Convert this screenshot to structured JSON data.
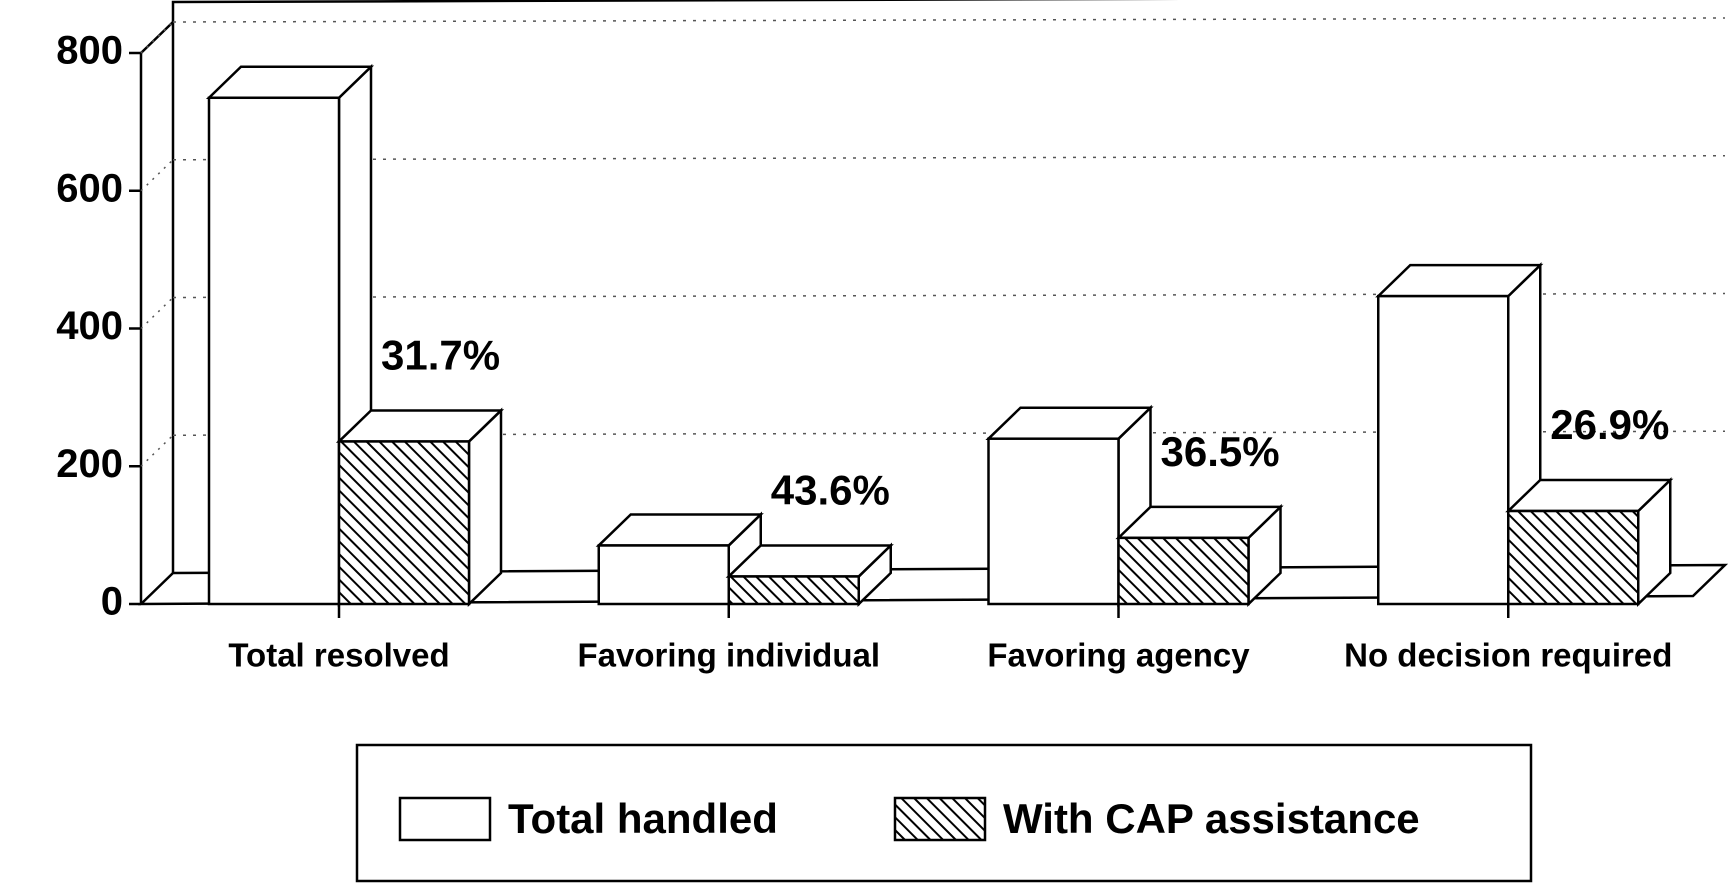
{
  "chart_data": {
    "type": "bar3d",
    "categories": [
      "Total resolved",
      "Favoring individual",
      "Favoring agency",
      "No decision required"
    ],
    "series": [
      {
        "name": "Total handled",
        "color": "#ffffff",
        "values": [
          735,
          85,
          240,
          447
        ]
      },
      {
        "name": "With CAP assistance",
        "color": "hatch",
        "values": [
          236,
          40,
          96,
          135
        ]
      }
    ],
    "annotations": [
      "31.7%",
      "43.6%",
      "36.5%",
      "26.9%"
    ],
    "ylim": [
      0,
      800
    ],
    "yticks": [
      0,
      200,
      400,
      600,
      800
    ],
    "grid": true
  }
}
